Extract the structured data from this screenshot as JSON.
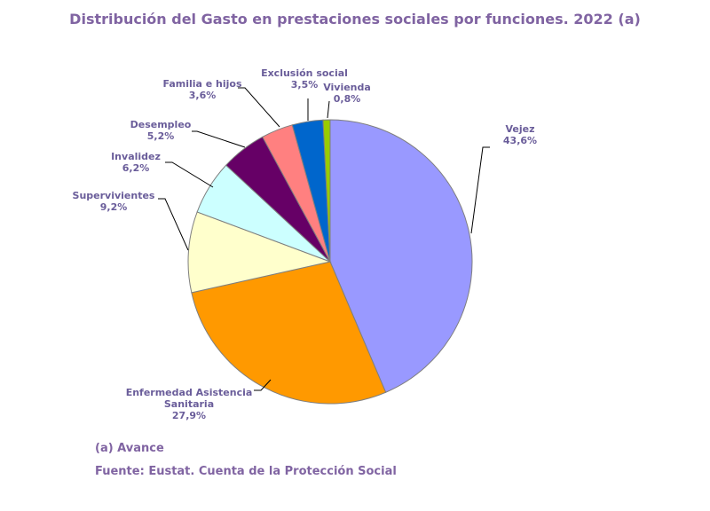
{
  "chart_data": {
    "type": "pie",
    "title": "Distribución del Gasto en prestaciones sociales por funciones. 2022 (a)",
    "slices": [
      {
        "name": "Vejez",
        "value": 43.6,
        "label_lines": [
          "Vejez",
          "43,6%"
        ],
        "color": "#9999ff"
      },
      {
        "name": "Enfermedad Asistencia Sanitaria",
        "value": 27.9,
        "label_lines": [
          "Enfermedad Asistencia",
          "Sanitaria",
          "27,9%"
        ],
        "color": "#ff9900"
      },
      {
        "name": "Supervivientes",
        "value": 9.2,
        "label_lines": [
          "Supervivientes",
          "9,2%"
        ],
        "color": "#ffffcc"
      },
      {
        "name": "Invalidez",
        "value": 6.2,
        "label_lines": [
          "Invalidez",
          "6,2%"
        ],
        "color": "#ccffff"
      },
      {
        "name": "Desempleo",
        "value": 5.2,
        "label_lines": [
          "Desempleo",
          "5,2%"
        ],
        "color": "#660066"
      },
      {
        "name": "Familia e hijos",
        "value": 3.6,
        "label_lines": [
          "Familia e hijos",
          "3,6%"
        ],
        "color": "#ff8080"
      },
      {
        "name": "Exclusión social",
        "value": 3.5,
        "label_lines": [
          "Exclusión social",
          "3,5%"
        ],
        "color": "#0066cc"
      },
      {
        "name": "Vivienda",
        "value": 0.8,
        "label_lines": [
          "Vivienda",
          "0,8%"
        ],
        "color": "#99cc00"
      }
    ]
  },
  "notes": {
    "avance": "(a) Avance",
    "fuente": "Fuente: Eustat. Cuenta de la Protección Social"
  }
}
